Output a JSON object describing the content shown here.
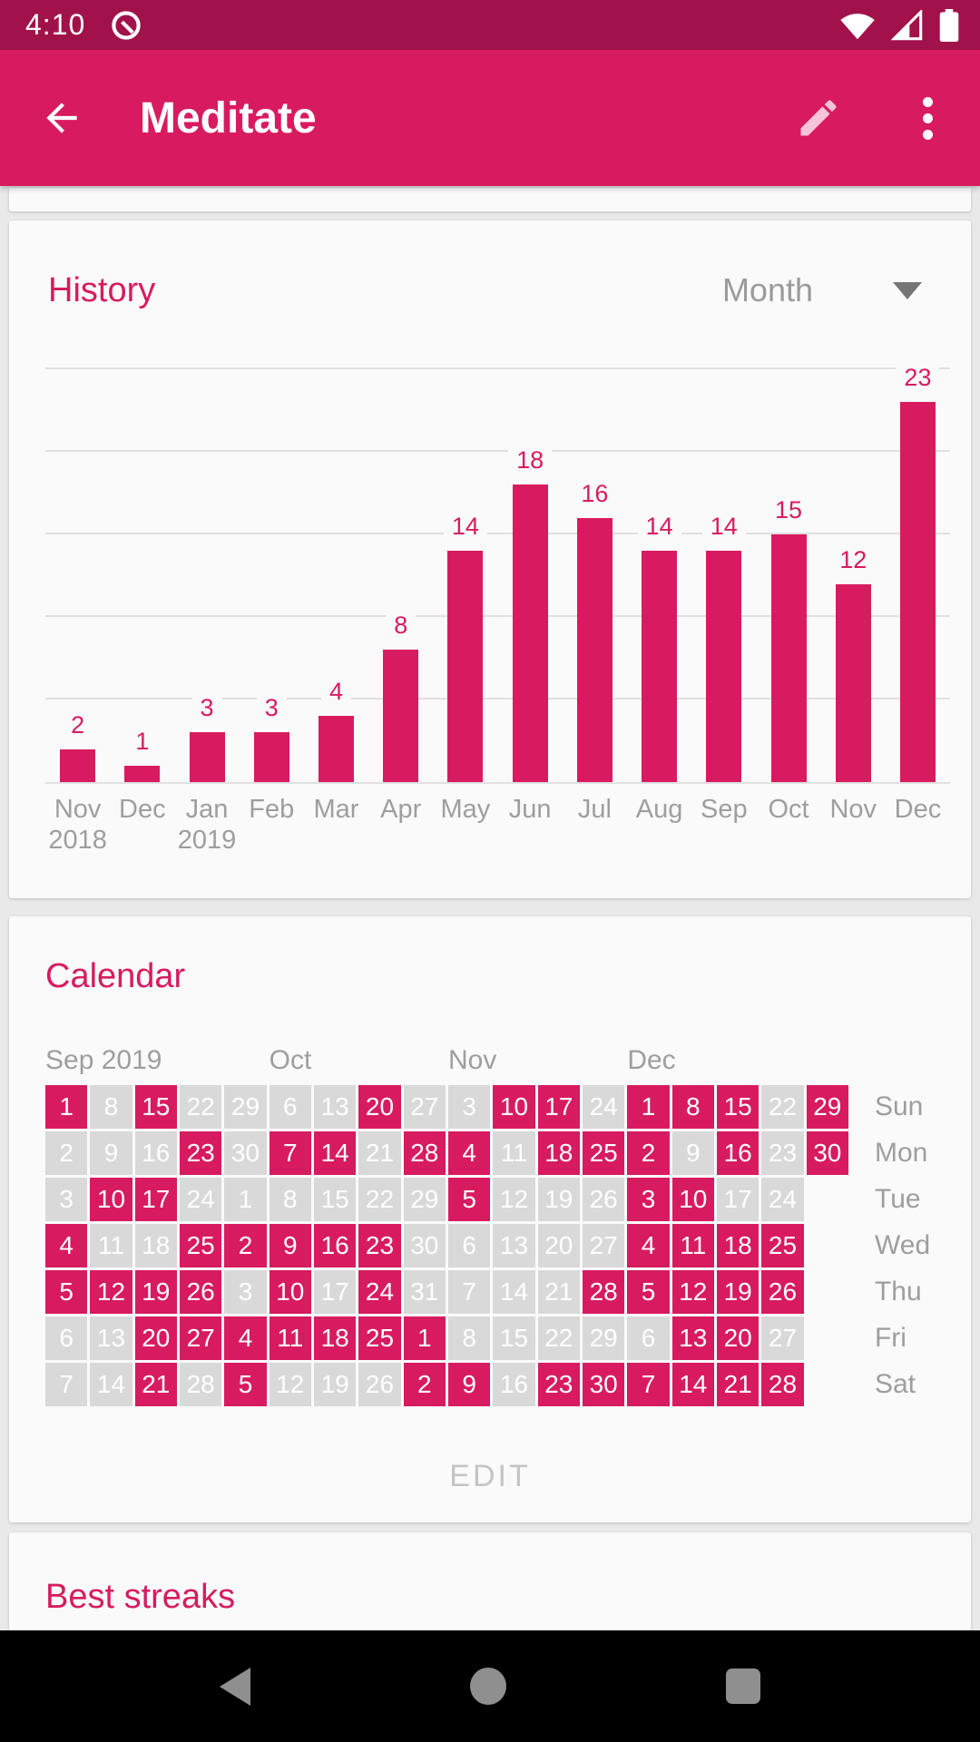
{
  "colors": {
    "accent": "#d81b60",
    "accent_dark": "#a1124b",
    "filled_cell": "#d81b60",
    "empty_cell": "#d9d9d9",
    "muted_text": "#9e9e9e"
  },
  "status_bar": {
    "time": "4:10",
    "icons": [
      "android-q-icon",
      "wifi-icon",
      "cell-signal-icon",
      "battery-icon"
    ]
  },
  "app_bar": {
    "title": "Meditate",
    "icons": [
      "back-arrow-icon",
      "pencil-icon",
      "overflow-menu-icon"
    ]
  },
  "history": {
    "title": "History",
    "range_label": "Month"
  },
  "chart_data": {
    "type": "bar",
    "title": "History",
    "categories": [
      {
        "month": "Nov",
        "year": "2018"
      },
      {
        "month": "Dec",
        "year": ""
      },
      {
        "month": "Jan",
        "year": "2019"
      },
      {
        "month": "Feb",
        "year": ""
      },
      {
        "month": "Mar",
        "year": ""
      },
      {
        "month": "Apr",
        "year": ""
      },
      {
        "month": "May",
        "year": ""
      },
      {
        "month": "Jun",
        "year": ""
      },
      {
        "month": "Jul",
        "year": ""
      },
      {
        "month": "Aug",
        "year": ""
      },
      {
        "month": "Sep",
        "year": ""
      },
      {
        "month": "Oct",
        "year": ""
      },
      {
        "month": "Nov",
        "year": ""
      },
      {
        "month": "Dec",
        "year": ""
      }
    ],
    "values": [
      2,
      1,
      3,
      3,
      4,
      8,
      14,
      18,
      16,
      14,
      14,
      15,
      12,
      23
    ],
    "ylim": [
      0,
      30
    ],
    "gridline_step": 5,
    "grid": true,
    "bar_color": "#d81b60",
    "value_labels_shown": true
  },
  "calendar": {
    "title": "Calendar",
    "month_headers": [
      {
        "label": "Sep 2019",
        "col": 1,
        "span": 5
      },
      {
        "label": "Oct",
        "col": 6,
        "span": 4
      },
      {
        "label": "Nov",
        "col": 10,
        "span": 4
      },
      {
        "label": "Dec",
        "col": 14,
        "span": 5
      }
    ],
    "rows": [
      {
        "label": "Sun",
        "days": [
          1,
          8,
          15,
          22,
          29,
          6,
          13,
          20,
          27,
          3,
          10,
          17,
          24,
          1,
          8,
          15,
          22,
          29
        ],
        "filled": [
          1,
          0,
          1,
          0,
          0,
          0,
          0,
          1,
          0,
          0,
          1,
          1,
          0,
          1,
          1,
          1,
          0,
          1
        ]
      },
      {
        "label": "Mon",
        "days": [
          2,
          9,
          16,
          23,
          30,
          7,
          14,
          21,
          28,
          4,
          11,
          18,
          25,
          2,
          9,
          16,
          23,
          30
        ],
        "filled": [
          0,
          0,
          0,
          1,
          0,
          1,
          1,
          0,
          1,
          1,
          0,
          1,
          1,
          1,
          0,
          1,
          0,
          1
        ]
      },
      {
        "label": "Tue",
        "days": [
          3,
          10,
          17,
          24,
          1,
          8,
          15,
          22,
          29,
          5,
          12,
          19,
          26,
          3,
          10,
          17,
          24
        ],
        "filled": [
          0,
          1,
          1,
          0,
          0,
          0,
          0,
          0,
          0,
          1,
          0,
          0,
          0,
          1,
          1,
          0,
          0
        ]
      },
      {
        "label": "Wed",
        "days": [
          4,
          11,
          18,
          25,
          2,
          9,
          16,
          23,
          30,
          6,
          13,
          20,
          27,
          4,
          11,
          18,
          25
        ],
        "filled": [
          1,
          0,
          0,
          1,
          1,
          1,
          1,
          1,
          0,
          0,
          0,
          0,
          0,
          1,
          1,
          1,
          1
        ]
      },
      {
        "label": "Thu",
        "days": [
          5,
          12,
          19,
          26,
          3,
          10,
          17,
          24,
          31,
          7,
          14,
          21,
          28,
          5,
          12,
          19,
          26
        ],
        "filled": [
          1,
          1,
          1,
          1,
          0,
          1,
          0,
          1,
          0,
          0,
          0,
          0,
          1,
          1,
          1,
          1,
          1
        ]
      },
      {
        "label": "Fri",
        "days": [
          6,
          13,
          20,
          27,
          4,
          11,
          18,
          25,
          1,
          8,
          15,
          22,
          29,
          6,
          13,
          20,
          27
        ],
        "filled": [
          0,
          0,
          1,
          1,
          1,
          1,
          1,
          1,
          1,
          0,
          0,
          0,
          0,
          0,
          1,
          1,
          0
        ]
      },
      {
        "label": "Sat",
        "days": [
          7,
          14,
          21,
          28,
          5,
          12,
          19,
          26,
          2,
          9,
          16,
          23,
          30,
          7,
          14,
          21,
          28
        ],
        "filled": [
          0,
          0,
          1,
          0,
          1,
          0,
          0,
          0,
          1,
          1,
          0,
          1,
          1,
          1,
          1,
          1,
          1
        ]
      }
    ],
    "edit_label": "EDIT"
  },
  "best_streaks": {
    "title": "Best streaks"
  },
  "nav_bar": {
    "icons": [
      "nav-back-icon",
      "nav-home-icon",
      "nav-recents-icon"
    ]
  }
}
